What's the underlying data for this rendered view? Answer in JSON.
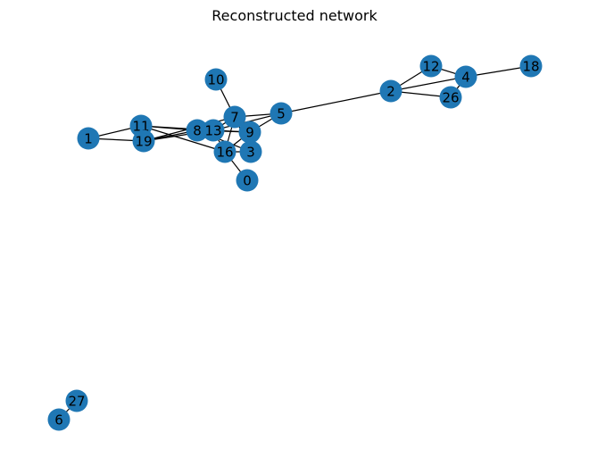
{
  "figure": {
    "title": "Reconstructed network",
    "node_color": "#1f77b4",
    "edge_color": "#000000",
    "label_color": "#000000"
  },
  "nodes": [
    {
      "id": "0",
      "label": "0"
    },
    {
      "id": "1",
      "label": "1"
    },
    {
      "id": "2",
      "label": "2"
    },
    {
      "id": "3",
      "label": "3"
    },
    {
      "id": "4",
      "label": "4"
    },
    {
      "id": "5",
      "label": "5"
    },
    {
      "id": "6",
      "label": "6"
    },
    {
      "id": "7",
      "label": "7"
    },
    {
      "id": "8",
      "label": "8"
    },
    {
      "id": "9",
      "label": "9"
    },
    {
      "id": "10",
      "label": "10"
    },
    {
      "id": "11",
      "label": "11"
    },
    {
      "id": "12",
      "label": "12"
    },
    {
      "id": "13",
      "label": "13"
    },
    {
      "id": "16",
      "label": "16"
    },
    {
      "id": "18",
      "label": "18"
    },
    {
      "id": "19",
      "label": "19"
    },
    {
      "id": "26",
      "label": "26"
    },
    {
      "id": "27",
      "label": "27"
    }
  ],
  "edges": [
    [
      "1",
      "11"
    ],
    [
      "1",
      "19"
    ],
    [
      "11",
      "8"
    ],
    [
      "11",
      "13"
    ],
    [
      "11",
      "16"
    ],
    [
      "19",
      "8"
    ],
    [
      "19",
      "13"
    ],
    [
      "19",
      "7"
    ],
    [
      "8",
      "13"
    ],
    [
      "8",
      "9"
    ],
    [
      "8",
      "3"
    ],
    [
      "13",
      "7"
    ],
    [
      "13",
      "9"
    ],
    [
      "13",
      "16"
    ],
    [
      "13",
      "5"
    ],
    [
      "10",
      "7"
    ],
    [
      "7",
      "9"
    ],
    [
      "7",
      "5"
    ],
    [
      "7",
      "16"
    ],
    [
      "7",
      "3"
    ],
    [
      "9",
      "5"
    ],
    [
      "9",
      "16"
    ],
    [
      "16",
      "3"
    ],
    [
      "16",
      "0"
    ],
    [
      "5",
      "2"
    ],
    [
      "2",
      "12"
    ],
    [
      "2",
      "4"
    ],
    [
      "2",
      "26"
    ],
    [
      "12",
      "4"
    ],
    [
      "4",
      "26"
    ],
    [
      "4",
      "18"
    ],
    [
      "6",
      "27"
    ]
  ]
}
